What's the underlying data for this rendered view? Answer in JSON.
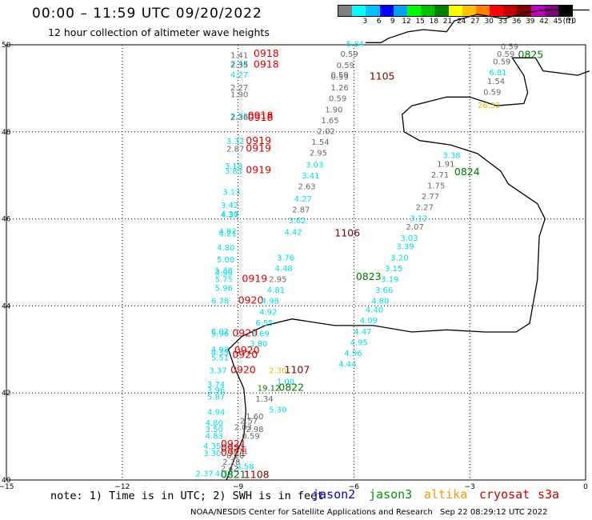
{
  "header": {
    "title": "00:00 – 11:59 UTC 09/20/2022",
    "subtitle": "12 hour collection of altimeter wave heights"
  },
  "legend": {
    "unit": "(ft)",
    "bins": [
      {
        "label": "",
        "color": "#808080"
      },
      {
        "label": "3",
        "color": "#00ffff"
      },
      {
        "label": "6",
        "color": "#00c0ff"
      },
      {
        "label": "9",
        "color": "#0000ff"
      },
      {
        "label": "12",
        "color": "#00a0ff"
      },
      {
        "label": "15",
        "color": "#00ff00"
      },
      {
        "label": "18",
        "color": "#00c000"
      },
      {
        "label": "21",
        "color": "#008000"
      },
      {
        "label": "24",
        "color": "#ffff00"
      },
      {
        "label": "27",
        "color": "#ffc000"
      },
      {
        "label": "30",
        "color": "#ff8000"
      },
      {
        "label": "33",
        "color": "#ff0000"
      },
      {
        "label": "36",
        "color": "#c00000"
      },
      {
        "label": "39",
        "color": "#800000"
      },
      {
        "label": "42",
        "color": "#c000c0"
      },
      {
        "label": "45",
        "color": "#800080"
      },
      {
        "label": "70",
        "color": "#000000"
      }
    ]
  },
  "axes": {
    "lon_ticks": [
      "−15",
      "−12",
      "−9",
      "−6",
      "−3",
      "0"
    ],
    "lat_ticks": [
      "50",
      "48",
      "46",
      "44",
      "42",
      "40"
    ]
  },
  "colors": {
    "jason2": "#0000cc",
    "jason3": "#009900",
    "altika": "#ff9900",
    "cryosat": "#cc0000",
    "s3a": "#cc0000",
    "wave_gray": "#666666",
    "wave_cyan": "#00e0e0",
    "time_red": "#dd0000",
    "time_darkred": "#800000",
    "time_green": "#007700",
    "wave_yellow": "#e0c000"
  },
  "tracks": {
    "track_0918_0919_0920": {
      "points": [
        {
          "lat": 49.7,
          "lon": -9.2,
          "value": "1.41",
          "color": "gray"
        },
        {
          "lat": 49.5,
          "lon": -9.2,
          "value": "2.48",
          "color": "cyan"
        },
        {
          "lat": 49.48,
          "lon": -9.2,
          "value": "2.35",
          "color": "gray"
        },
        {
          "lat": 49.25,
          "lon": -9.2,
          "value": "4.27",
          "color": "cyan"
        },
        {
          "lat": 48.95,
          "lon": -9.2,
          "value": "2.27",
          "color": "gray"
        },
        {
          "lat": 48.8,
          "lon": -9.2,
          "value": "1.90",
          "color": "gray"
        },
        {
          "lat": 48.3,
          "lon": -9.2,
          "value": "2.55",
          "color": "cyan"
        },
        {
          "lat": 48.27,
          "lon": -9.2,
          "value": "2.36",
          "color": "gray"
        },
        {
          "lat": 47.72,
          "lon": -9.3,
          "value": "3.32",
          "color": "cyan"
        },
        {
          "lat": 47.55,
          "lon": -9.3,
          "value": "2.87",
          "color": "gray"
        },
        {
          "lat": 47.15,
          "lon": -9.35,
          "value": "3.18",
          "color": "cyan"
        },
        {
          "lat": 47.03,
          "lon": -9.35,
          "value": "3.83",
          "color": "cyan"
        },
        {
          "lat": 46.55,
          "lon": -9.4,
          "value": "3.13",
          "color": "cyan"
        },
        {
          "lat": 46.25,
          "lon": -9.45,
          "value": "3.42",
          "color": "cyan"
        },
        {
          "lat": 46.05,
          "lon": -9.45,
          "value": "4.30",
          "color": "cyan"
        },
        {
          "lat": 46.03,
          "lon": -9.45,
          "value": "4.37",
          "color": "cyan"
        },
        {
          "lat": 45.65,
          "lon": -9.5,
          "value": "4.82",
          "color": "cyan"
        },
        {
          "lat": 45.6,
          "lon": -9.5,
          "value": "4.21",
          "color": "cyan"
        },
        {
          "lat": 45.28,
          "lon": -9.55,
          "value": "4.80",
          "color": "cyan"
        },
        {
          "lat": 45.0,
          "lon": -9.55,
          "value": "5.00",
          "color": "cyan"
        },
        {
          "lat": 44.75,
          "lon": -9.6,
          "value": "5.38",
          "color": "cyan"
        },
        {
          "lat": 44.7,
          "lon": -9.6,
          "value": "4.99",
          "color": "cyan"
        },
        {
          "lat": 44.55,
          "lon": -9.6,
          "value": "5.75",
          "color": "cyan"
        },
        {
          "lat": 44.35,
          "lon": -9.6,
          "value": "5.96",
          "color": "cyan"
        },
        {
          "lat": 44.05,
          "lon": -9.7,
          "value": "6.78",
          "color": "cyan"
        },
        {
          "lat": 43.35,
          "lon": -9.7,
          "value": "6.02",
          "color": "cyan"
        },
        {
          "lat": 43.3,
          "lon": -9.7,
          "value": "5.96",
          "color": "cyan"
        },
        {
          "lat": 42.93,
          "lon": -9.7,
          "value": "4.93",
          "color": "cyan"
        },
        {
          "lat": 42.87,
          "lon": -9.7,
          "value": "4.35",
          "color": "cyan"
        },
        {
          "lat": 42.75,
          "lon": -9.7,
          "value": "5.51",
          "color": "cyan"
        },
        {
          "lat": 42.45,
          "lon": -9.75,
          "value": "3.37",
          "color": "cyan"
        },
        {
          "lat": 42.13,
          "lon": -9.8,
          "value": "3.74",
          "color": "cyan"
        },
        {
          "lat": 42.0,
          "lon": -9.8,
          "value": "3.96",
          "color": "cyan"
        },
        {
          "lat": 41.85,
          "lon": -9.8,
          "value": "5.87",
          "color": "cyan"
        },
        {
          "lat": 41.5,
          "lon": -9.8,
          "value": "4.94",
          "color": "cyan"
        },
        {
          "lat": 41.25,
          "lon": -9.85,
          "value": "4.80",
          "color": "cyan"
        },
        {
          "lat": 41.1,
          "lon": -9.85,
          "value": "3.50",
          "color": "cyan"
        },
        {
          "lat": 40.95,
          "lon": -9.85,
          "value": "4.83",
          "color": "cyan"
        },
        {
          "lat": 40.72,
          "lon": -9.9,
          "value": "4.35",
          "color": "cyan"
        },
        {
          "lat": 40.55,
          "lon": -9.9,
          "value": "3.30",
          "color": "cyan"
        },
        {
          "lat": 40.08,
          "lon": -10.1,
          "value": "2.37",
          "color": "cyan"
        }
      ],
      "labels": [
        {
          "lat": 49.72,
          "lon": -8.6,
          "text": "0918",
          "color": "red"
        },
        {
          "lat": 49.48,
          "lon": -8.6,
          "text": "0918",
          "color": "red"
        },
        {
          "lat": 48.3,
          "lon": -8.75,
          "text": "0918",
          "color": "red"
        },
        {
          "lat": 48.25,
          "lon": -8.75,
          "text": "0918",
          "color": "red"
        },
        {
          "lat": 47.72,
          "lon": -8.8,
          "text": "0919",
          "color": "red"
        },
        {
          "lat": 47.55,
          "lon": -8.8,
          "text": "0919",
          "color": "red"
        },
        {
          "lat": 47.05,
          "lon": -8.8,
          "text": "0919",
          "color": "red"
        },
        {
          "lat": 44.55,
          "lon": -8.9,
          "text": "0919",
          "color": "red"
        },
        {
          "lat": 44.05,
          "lon": -9.0,
          "text": "0920",
          "color": "red"
        },
        {
          "lat": 43.3,
          "lon": -9.15,
          "text": "0920",
          "color": "red"
        },
        {
          "lat": 42.9,
          "lon": -9.1,
          "text": "0920",
          "color": "red"
        },
        {
          "lat": 42.8,
          "lon": -9.15,
          "text": "0920",
          "color": "red"
        },
        {
          "lat": 42.45,
          "lon": -9.2,
          "text": "0920",
          "color": "red"
        },
        {
          "lat": 40.75,
          "lon": -9.45,
          "text": "0921",
          "color": "red"
        },
        {
          "lat": 40.65,
          "lon": -9.45,
          "text": "0921",
          "color": "red"
        },
        {
          "lat": 40.55,
          "lon": -9.45,
          "text": "0921",
          "color": "red"
        }
      ]
    },
    "track_1105_1106_1107": {
      "points": [
        {
          "lat": 49.95,
          "lon": -6.2,
          "value": "5.84",
          "color": "cyan"
        },
        {
          "lat": 49.72,
          "lon": -6.35,
          "value": "0.59",
          "color": "gray"
        },
        {
          "lat": 49.47,
          "lon": -6.45,
          "value": "0.59",
          "color": "gray"
        },
        {
          "lat": 49.2,
          "lon": -6.6,
          "value": "0.59",
          "color": "gray"
        },
        {
          "lat": 49.25,
          "lon": -6.6,
          "value": "0.59",
          "color": "gray"
        },
        {
          "lat": 48.95,
          "lon": -6.6,
          "value": "1.26",
          "color": "gray"
        },
        {
          "lat": 48.7,
          "lon": -6.65,
          "value": "0.59",
          "color": "gray"
        },
        {
          "lat": 48.45,
          "lon": -6.75,
          "value": "1.90",
          "color": "gray"
        },
        {
          "lat": 48.2,
          "lon": -6.85,
          "value": "1.65",
          "color": "gray"
        },
        {
          "lat": 47.95,
          "lon": -6.95,
          "value": "2.02",
          "color": "gray"
        },
        {
          "lat": 47.7,
          "lon": -7.1,
          "value": "1.54",
          "color": "gray"
        },
        {
          "lat": 47.45,
          "lon": -7.15,
          "value": "2.95",
          "color": "gray"
        },
        {
          "lat": 47.18,
          "lon": -7.25,
          "value": "3.03",
          "color": "cyan"
        },
        {
          "lat": 46.93,
          "lon": -7.35,
          "value": "3.41",
          "color": "cyan"
        },
        {
          "lat": 46.68,
          "lon": -7.45,
          "value": "2.63",
          "color": "gray"
        },
        {
          "lat": 46.4,
          "lon": -7.55,
          "value": "4.27",
          "color": "cyan"
        },
        {
          "lat": 46.15,
          "lon": -7.6,
          "value": "2.87",
          "color": "gray"
        },
        {
          "lat": 45.9,
          "lon": -7.7,
          "value": "3.62",
          "color": "cyan"
        },
        {
          "lat": 45.63,
          "lon": -7.8,
          "value": "4.42",
          "color": "cyan"
        },
        {
          "lat": 45.05,
          "lon": -8.0,
          "value": "3.76",
          "color": "cyan"
        },
        {
          "lat": 44.8,
          "lon": -8.05,
          "value": "4.48",
          "color": "cyan"
        },
        {
          "lat": 44.55,
          "lon": -8.2,
          "value": "2.95",
          "color": "gray"
        },
        {
          "lat": 44.3,
          "lon": -8.25,
          "value": "4.81",
          "color": "cyan"
        },
        {
          "lat": 44.05,
          "lon": -8.4,
          "value": "4.98",
          "color": "cyan"
        },
        {
          "lat": 43.8,
          "lon": -8.45,
          "value": "4.92",
          "color": "cyan"
        },
        {
          "lat": 43.55,
          "lon": -8.55,
          "value": "6.55",
          "color": "cyan"
        },
        {
          "lat": 43.3,
          "lon": -8.65,
          "value": "3.69",
          "color": "cyan"
        },
        {
          "lat": 43.07,
          "lon": -8.7,
          "value": "3.80",
          "color": "cyan"
        },
        {
          "lat": 42.45,
          "lon": -8.2,
          "value": "2.30",
          "color": "yellow"
        }
      ],
      "labels": [
        {
          "lat": 49.2,
          "lon": -5.6,
          "text": "1105",
          "color": "darkred"
        },
        {
          "lat": 45.6,
          "lon": -6.5,
          "text": "1106",
          "color": "darkred"
        },
        {
          "lat": 42.45,
          "lon": -7.8,
          "text": "1107",
          "color": "darkred"
        },
        {
          "lat": 40.05,
          "lon": -8.85,
          "text": "1108",
          "color": "darkred"
        }
      ]
    },
    "track_0821_0822_0823_0824_0825": {
      "points": [
        {
          "lat": 49.9,
          "lon": -2.2,
          "value": "0.59",
          "color": "gray"
        },
        {
          "lat": 49.72,
          "lon": -2.3,
          "value": "0.59",
          "color": "gray"
        },
        {
          "lat": 49.55,
          "lon": -2.4,
          "value": "0.59",
          "color": "gray"
        },
        {
          "lat": 49.3,
          "lon": -2.5,
          "value": "6.81",
          "color": "cyan"
        },
        {
          "lat": 49.1,
          "lon": -2.55,
          "value": "1.54",
          "color": "gray"
        },
        {
          "lat": 48.85,
          "lon": -2.65,
          "value": "0.59",
          "color": "gray"
        },
        {
          "lat": 48.55,
          "lon": -2.8,
          "value": "26.33",
          "color": "yellow"
        },
        {
          "lat": 47.4,
          "lon": -3.7,
          "value": "3.38",
          "color": "cyan"
        },
        {
          "lat": 47.2,
          "lon": -3.85,
          "value": "1.91",
          "color": "gray"
        },
        {
          "lat": 46.95,
          "lon": -4.0,
          "value": "2.71",
          "color": "gray"
        },
        {
          "lat": 46.7,
          "lon": -4.1,
          "value": "1.75",
          "color": "gray"
        },
        {
          "lat": 46.45,
          "lon": -4.25,
          "value": "2.77",
          "color": "gray"
        },
        {
          "lat": 46.2,
          "lon": -4.4,
          "value": "2.27",
          "color": "gray"
        },
        {
          "lat": 45.95,
          "lon": -4.55,
          "value": "3.12",
          "color": "cyan"
        },
        {
          "lat": 45.75,
          "lon": -4.65,
          "value": "2.07",
          "color": "gray"
        },
        {
          "lat": 45.5,
          "lon": -4.8,
          "value": "3.03",
          "color": "cyan"
        },
        {
          "lat": 45.3,
          "lon": -4.9,
          "value": "3.39",
          "color": "cyan"
        },
        {
          "lat": 45.05,
          "lon": -5.05,
          "value": "3.20",
          "color": "cyan"
        },
        {
          "lat": 44.8,
          "lon": -5.2,
          "value": "3.15",
          "color": "cyan"
        },
        {
          "lat": 44.55,
          "lon": -5.3,
          "value": "3.19",
          "color": "cyan"
        },
        {
          "lat": 44.3,
          "lon": -5.45,
          "value": "3.66",
          "color": "cyan"
        },
        {
          "lat": 44.05,
          "lon": -5.55,
          "value": "4.80",
          "color": "cyan"
        },
        {
          "lat": 43.85,
          "lon": -5.7,
          "value": "4.40",
          "color": "cyan"
        },
        {
          "lat": 43.6,
          "lon": -5.85,
          "value": "4.09",
          "color": "cyan"
        },
        {
          "lat": 43.35,
          "lon": -6.0,
          "value": "4.47",
          "color": "cyan"
        },
        {
          "lat": 43.1,
          "lon": -6.1,
          "value": "4.95",
          "color": "cyan"
        },
        {
          "lat": 42.85,
          "lon": -6.25,
          "value": "4.96",
          "color": "cyan"
        },
        {
          "lat": 42.6,
          "lon": -6.4,
          "value": "4.44",
          "color": "cyan"
        },
        {
          "lat": 42.2,
          "lon": -8.0,
          "value": "1.00",
          "color": "cyan"
        },
        {
          "lat": 42.05,
          "lon": -8.5,
          "value": "19.12",
          "color": "green"
        },
        {
          "lat": 41.8,
          "lon": -8.55,
          "value": "1.34",
          "color": "gray"
        },
        {
          "lat": 41.55,
          "lon": -8.2,
          "value": "5.30",
          "color": "cyan"
        },
        {
          "lat": 41.4,
          "lon": -8.8,
          "value": "1.60",
          "color": "gray"
        },
        {
          "lat": 41.3,
          "lon": -8.95,
          "value": "2.57",
          "color": "gray"
        },
        {
          "lat": 41.15,
          "lon": -9.1,
          "value": "2.03",
          "color": "gray"
        },
        {
          "lat": 41.1,
          "lon": -8.8,
          "value": "2.98",
          "color": "gray"
        },
        {
          "lat": 40.95,
          "lon": -8.9,
          "value": "0.59",
          "color": "gray"
        },
        {
          "lat": 40.6,
          "lon": -9.2,
          "value": "0.71",
          "color": "gray"
        },
        {
          "lat": 40.5,
          "lon": -9.3,
          "value": "0.20",
          "color": "gray"
        },
        {
          "lat": 40.35,
          "lon": -9.4,
          "value": "2.28",
          "color": "gray"
        },
        {
          "lat": 40.2,
          "lon": -9.45,
          "value": "2.42",
          "color": "gray"
        },
        {
          "lat": 40.25,
          "lon": -9.05,
          "value": "3.58",
          "color": "cyan"
        },
        {
          "lat": 40.08,
          "lon": -9.6,
          "value": "4.39",
          "color": "cyan"
        }
      ],
      "labels": [
        {
          "lat": 49.7,
          "lon": -1.75,
          "text": "0825",
          "color": "green"
        },
        {
          "lat": 47.0,
          "lon": -3.4,
          "text": "0824",
          "color": "green"
        },
        {
          "lat": 44.6,
          "lon": -5.95,
          "text": "0823",
          "color": "green"
        },
        {
          "lat": 42.05,
          "lon": -7.95,
          "text": "0822",
          "color": "green"
        },
        {
          "lat": 40.05,
          "lon": -9.45,
          "text": "0821",
          "color": "green"
        }
      ]
    }
  },
  "footer": {
    "note": "note: 1) Time is in UTC; 2) SWH is in feet",
    "satellites": [
      "jason2",
      "jason3",
      "altika",
      "cryosat",
      "s3a"
    ],
    "credit": "NOAA/NESDIS Center for Satellite Applications and Research",
    "timestamp": "Sep 22 08:29:12 UTC 2022"
  }
}
